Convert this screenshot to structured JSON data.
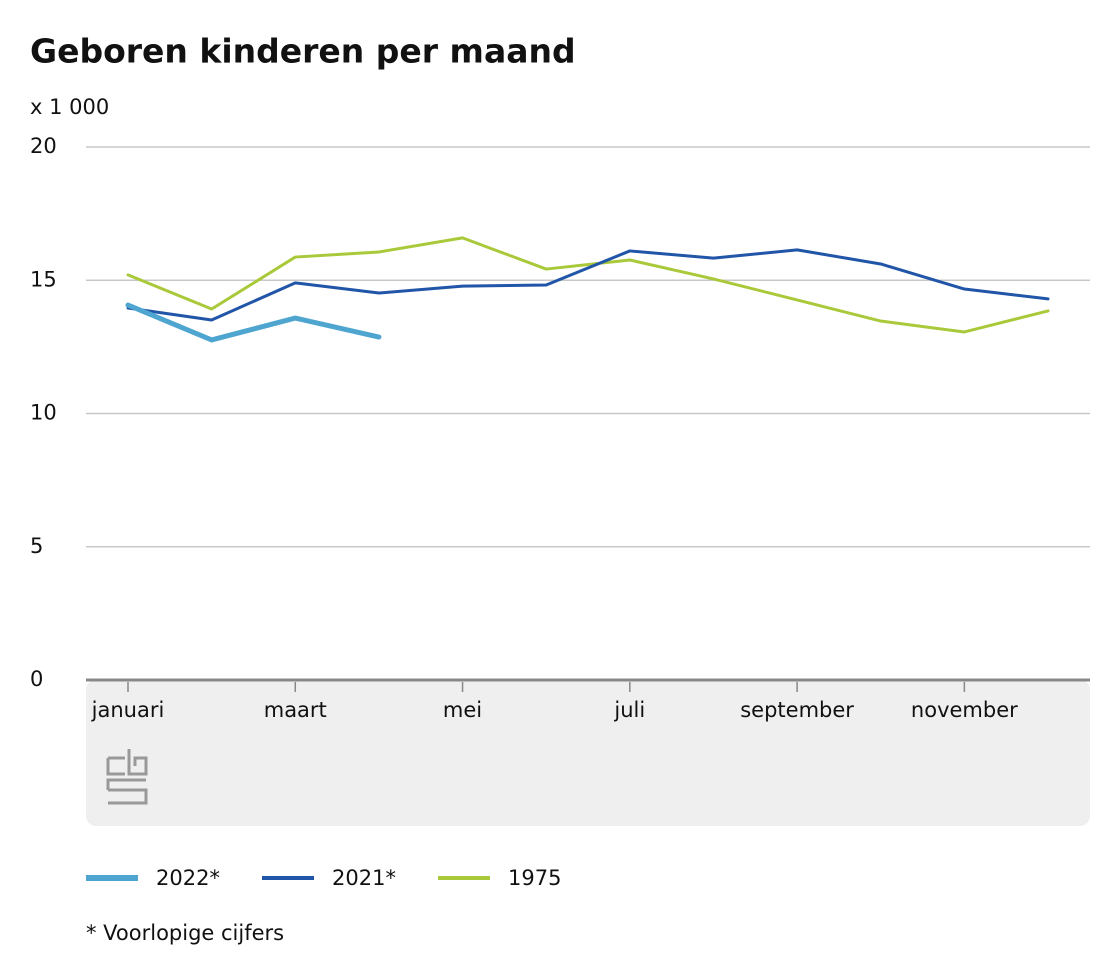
{
  "chart_data": {
    "type": "line",
    "title": "Geboren kinderen per maand",
    "y_label": "x 1 000",
    "categories": [
      "januari",
      null,
      "maart",
      null,
      "mei",
      null,
      "juli",
      null,
      "september",
      null,
      "november",
      null
    ],
    "series": [
      {
        "name": "2022*",
        "color": "#4ea5cf",
        "values": [
          14.07,
          12.76,
          13.58,
          12.87,
          null,
          null,
          null,
          null,
          null,
          null,
          null,
          null
        ]
      },
      {
        "name": "2021*",
        "color": "#2155a8",
        "values": [
          13.96,
          13.51,
          14.9,
          14.52,
          14.78,
          14.82,
          16.1,
          15.83,
          16.14,
          15.61,
          14.67,
          14.3
        ]
      },
      {
        "name": "1975",
        "color": "#a9c93a",
        "values": [
          15.2,
          13.92,
          15.87,
          16.06,
          16.59,
          15.42,
          15.76,
          15.05,
          14.26,
          13.47,
          13.06,
          13.85
        ]
      }
    ],
    "ylim": [
      0,
      20
    ],
    "yticks": [
      0,
      5,
      10,
      15,
      20
    ],
    "grid": true,
    "footnote": "* Voorlopige cijfers"
  }
}
